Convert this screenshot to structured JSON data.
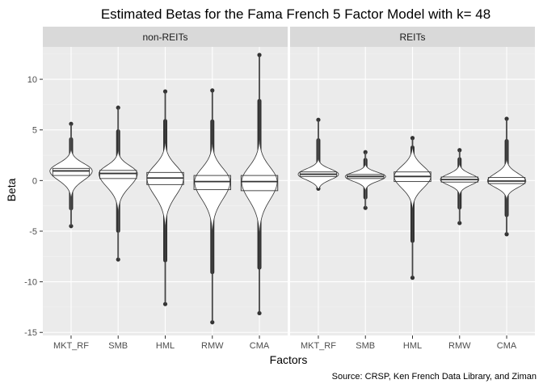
{
  "chart_data": {
    "type": "boxplot",
    "title": "Estimated Betas for the Fama French 5 Factor Model with k= 48",
    "xlabel": "Factors",
    "ylabel": "Beta",
    "caption": "Source: CRSP, Ken French Data Library, and Ziman",
    "ylim": [
      -15.3,
      13.2
    ],
    "yticks": [
      -15,
      -10,
      -5,
      0,
      5,
      10
    ],
    "categories": [
      "MKT_RF",
      "SMB",
      "HML",
      "RMW",
      "CMA"
    ],
    "grid": true,
    "panels": [
      {
        "name": "non-REITs",
        "series": [
          {
            "category": "MKT_RF",
            "q1": 0.5,
            "median": 0.95,
            "q3": 1.2,
            "whisker_low": -0.6,
            "whisker_high": 2.2,
            "out_low": -4.5,
            "out_high": 5.6,
            "violin_max": 2.2
          },
          {
            "category": "SMB",
            "q1": 0.2,
            "median": 0.7,
            "q3": 1.0,
            "whisker_low": -1.5,
            "whisker_high": 2.0,
            "out_low": -7.8,
            "out_high": 7.2,
            "violin_max": 2.0
          },
          {
            "category": "HML",
            "q1": -0.4,
            "median": 0.25,
            "q3": 0.8,
            "whisker_low": -2.6,
            "whisker_high": 2.3,
            "out_low": -12.2,
            "out_high": 8.8,
            "violin_max": 1.9
          },
          {
            "category": "RMW",
            "q1": -0.9,
            "median": -0.1,
            "q3": 0.5,
            "whisker_low": -3.0,
            "whisker_high": 2.1,
            "out_low": -14.0,
            "out_high": 8.9,
            "violin_max": 1.85
          },
          {
            "category": "CMA",
            "q1": -1.0,
            "median": -0.1,
            "q3": 0.5,
            "whisker_low": -3.1,
            "whisker_high": 2.3,
            "out_low": -13.1,
            "out_high": 12.4,
            "violin_max": 1.85
          }
        ]
      },
      {
        "name": "REITs",
        "series": [
          {
            "category": "MKT_RF",
            "q1": 0.4,
            "median": 0.62,
            "q3": 0.85,
            "whisker_low": -0.3,
            "whisker_high": 1.5,
            "out_low": -0.8,
            "out_high": 6.0,
            "violin_max": 2.1
          },
          {
            "category": "SMB",
            "q1": 0.2,
            "median": 0.4,
            "q3": 0.6,
            "whisker_low": -0.4,
            "whisker_high": 1.1,
            "out_low": -2.7,
            "out_high": 2.8,
            "violin_max": 2.1
          },
          {
            "category": "HML",
            "q1": -0.1,
            "median": 0.4,
            "q3": 0.85,
            "whisker_low": -1.5,
            "whisker_high": 2.1,
            "out_low": -9.6,
            "out_high": 4.2,
            "violin_max": 1.9
          },
          {
            "category": "RMW",
            "q1": -0.15,
            "median": 0.1,
            "q3": 0.35,
            "whisker_low": -0.8,
            "whisker_high": 1.0,
            "out_low": -4.2,
            "out_high": 3.0,
            "violin_max": 2.0
          },
          {
            "category": "CMA",
            "q1": -0.3,
            "median": -0.05,
            "q3": 0.3,
            "whisker_low": -1.1,
            "whisker_high": 1.2,
            "out_low": -5.3,
            "out_high": 6.1,
            "violin_max": 2.0
          }
        ]
      }
    ],
    "colors": {
      "panel_bg": "#ebebeb",
      "strip_bg": "#d9d9d9",
      "grid_major": "#ffffff",
      "grid_minor": "#f2f2f2",
      "box_fill": "#ffffff",
      "line": "#333333"
    }
  }
}
